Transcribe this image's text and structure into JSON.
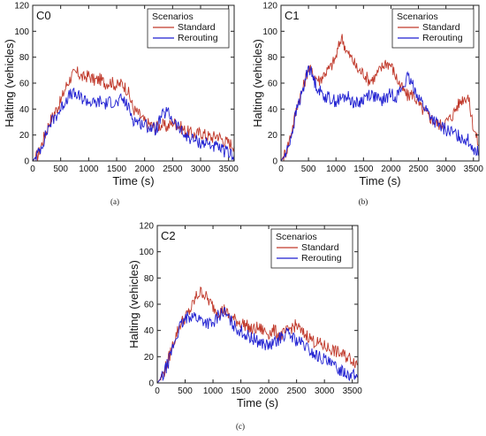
{
  "chart_data": [
    {
      "type": "line",
      "panel": "C0",
      "caption": "(a)",
      "xlabel": "Time (s)",
      "ylabel": "Halting (vehicles)",
      "xlim": [
        0,
        3600
      ],
      "ylim": [
        0,
        120
      ],
      "xticks": [
        "0",
        "500",
        "1000",
        "1500",
        "2000",
        "2500",
        "3000",
        "3500"
      ],
      "yticks": [
        "0",
        "20",
        "40",
        "60",
        "80",
        "100",
        "120"
      ],
      "legend_title": "Scenarios",
      "legend_position": "top-right",
      "grid": false,
      "colors": {
        "Standard": "#c0392b",
        "Rerouting": "#1f1fd1"
      },
      "series": [
        {
          "name": "Standard",
          "x": [
            0,
            100,
            200,
            300,
            400,
            500,
            600,
            700,
            800,
            900,
            1000,
            1100,
            1200,
            1300,
            1400,
            1500,
            1600,
            1700,
            1800,
            1900,
            2000,
            2100,
            2200,
            2300,
            2400,
            2500,
            2600,
            2700,
            2800,
            2900,
            3000,
            3100,
            3200,
            3300,
            3400,
            3500,
            3600
          ],
          "y": [
            0,
            5,
            18,
            30,
            38,
            46,
            58,
            66,
            68,
            64,
            66,
            62,
            63,
            60,
            61,
            58,
            60,
            54,
            40,
            36,
            30,
            28,
            26,
            28,
            26,
            30,
            28,
            24,
            22,
            20,
            22,
            20,
            18,
            20,
            16,
            14,
            12
          ]
        },
        {
          "name": "Rerouting",
          "x": [
            0,
            100,
            200,
            300,
            400,
            500,
            600,
            700,
            800,
            900,
            1000,
            1100,
            1200,
            1300,
            1400,
            1500,
            1600,
            1700,
            1800,
            1900,
            2000,
            2100,
            2200,
            2300,
            2400,
            2500,
            2600,
            2700,
            2800,
            2900,
            3000,
            3100,
            3200,
            3300,
            3400,
            3500,
            3600
          ],
          "y": [
            0,
            6,
            16,
            28,
            34,
            40,
            48,
            52,
            50,
            48,
            46,
            44,
            46,
            44,
            46,
            44,
            48,
            42,
            32,
            30,
            28,
            26,
            24,
            34,
            38,
            32,
            26,
            20,
            18,
            16,
            14,
            14,
            12,
            10,
            8,
            6,
            5
          ]
        }
      ]
    },
    {
      "type": "line",
      "panel": "C1",
      "caption": "(b)",
      "xlabel": "Time (s)",
      "ylabel": "Halting (vehicles)",
      "xlim": [
        0,
        3600
      ],
      "ylim": [
        0,
        120
      ],
      "xticks": [
        "0",
        "500",
        "1000",
        "1500",
        "2000",
        "2500",
        "3000",
        "3500"
      ],
      "yticks": [
        "0",
        "20",
        "40",
        "60",
        "80",
        "100",
        "120"
      ],
      "legend_title": "Scenarios",
      "legend_position": "top-right",
      "grid": false,
      "colors": {
        "Standard": "#c0392b",
        "Rerouting": "#1f1fd1"
      },
      "series": [
        {
          "name": "Standard",
          "x": [
            0,
            100,
            200,
            300,
            400,
            500,
            600,
            700,
            800,
            900,
            1000,
            1100,
            1200,
            1300,
            1400,
            1500,
            1600,
            1700,
            1800,
            1900,
            2000,
            2100,
            2200,
            2300,
            2400,
            2500,
            2600,
            2700,
            2800,
            2900,
            3000,
            3100,
            3200,
            3300,
            3400,
            3500,
            3600
          ],
          "y": [
            0,
            8,
            24,
            44,
            56,
            72,
            66,
            62,
            68,
            72,
            80,
            96,
            84,
            78,
            70,
            68,
            62,
            64,
            70,
            76,
            74,
            64,
            56,
            50,
            52,
            44,
            38,
            34,
            30,
            28,
            30,
            34,
            42,
            48,
            50,
            26,
            12
          ]
        },
        {
          "name": "Rerouting",
          "x": [
            0,
            100,
            200,
            300,
            400,
            500,
            600,
            700,
            800,
            900,
            1000,
            1100,
            1200,
            1300,
            1400,
            1500,
            1600,
            1700,
            1800,
            1900,
            2000,
            2100,
            2200,
            2300,
            2400,
            2500,
            2600,
            2700,
            2800,
            2900,
            3000,
            3100,
            3200,
            3300,
            3400,
            3500,
            3600
          ],
          "y": [
            0,
            6,
            22,
            42,
            54,
            74,
            62,
            54,
            50,
            48,
            46,
            48,
            50,
            46,
            44,
            48,
            52,
            50,
            46,
            48,
            52,
            50,
            56,
            64,
            58,
            50,
            42,
            36,
            30,
            26,
            24,
            22,
            20,
            18,
            16,
            10,
            6
          ]
        }
      ]
    },
    {
      "type": "line",
      "panel": "C2",
      "caption": "(c)",
      "xlabel": "Time (s)",
      "ylabel": "Halting (vehicles)",
      "xlim": [
        0,
        3600
      ],
      "ylim": [
        0,
        120
      ],
      "xticks": [
        "0",
        "500",
        "1000",
        "1500",
        "2000",
        "2500",
        "3000",
        "3500"
      ],
      "yticks": [
        "0",
        "20",
        "40",
        "60",
        "80",
        "100",
        "120"
      ],
      "legend_title": "Scenarios",
      "legend_position": "top-right",
      "grid": false,
      "colors": {
        "Standard": "#c0392b",
        "Rerouting": "#1f1fd1"
      },
      "series": [
        {
          "name": "Standard",
          "x": [
            0,
            100,
            200,
            300,
            400,
            500,
            600,
            700,
            800,
            900,
            1000,
            1100,
            1200,
            1300,
            1400,
            1500,
            1600,
            1700,
            1800,
            1900,
            2000,
            2100,
            2200,
            2300,
            2400,
            2500,
            2600,
            2700,
            2800,
            2900,
            3000,
            3100,
            3200,
            3300,
            3400,
            3500,
            3600
          ],
          "y": [
            0,
            6,
            18,
            32,
            44,
            50,
            56,
            66,
            70,
            64,
            58,
            54,
            56,
            50,
            48,
            46,
            44,
            40,
            42,
            40,
            38,
            40,
            36,
            38,
            42,
            44,
            38,
            36,
            32,
            30,
            28,
            26,
            24,
            22,
            20,
            18,
            14
          ]
        },
        {
          "name": "Rerouting",
          "x": [
            0,
            100,
            200,
            300,
            400,
            500,
            600,
            700,
            800,
            900,
            1000,
            1100,
            1200,
            1300,
            1400,
            1500,
            1600,
            1700,
            1800,
            1900,
            2000,
            2100,
            2200,
            2300,
            2400,
            2500,
            2600,
            2700,
            2800,
            2900,
            3000,
            3100,
            3200,
            3300,
            3400,
            3500,
            3600
          ],
          "y": [
            0,
            5,
            16,
            30,
            42,
            48,
            52,
            50,
            48,
            46,
            44,
            52,
            54,
            48,
            42,
            40,
            36,
            34,
            32,
            30,
            28,
            30,
            34,
            38,
            36,
            32,
            30,
            26,
            22,
            20,
            18,
            14,
            12,
            10,
            8,
            6,
            4
          ]
        }
      ]
    }
  ]
}
